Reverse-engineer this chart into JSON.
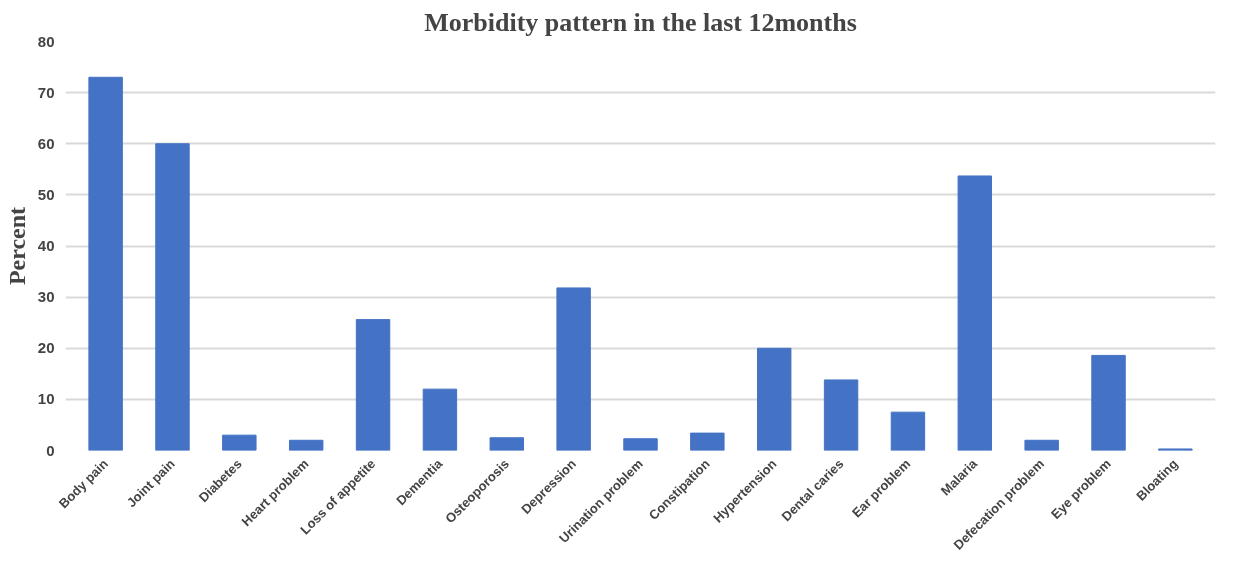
{
  "chart_data": {
    "type": "bar",
    "title": "Morbidity pattern in the last 12months",
    "ylabel": "Percent",
    "categories": [
      "Body pain",
      "Joint pain",
      "Diabetes",
      "Heart problem",
      "Loss of appetite",
      "Dementia",
      "Osteoporosis",
      "Depression",
      "Urination problem",
      "Constipation",
      "Hypertension",
      "Dental caries",
      "Ear problem",
      "Malaria",
      "Defecation problem",
      "Eye problem",
      "Bloating"
    ],
    "values": [
      73,
      60,
      3,
      2,
      25.6,
      12,
      2.5,
      31.8,
      2.3,
      3.4,
      20,
      13.8,
      7.5,
      53.7,
      2,
      18.6,
      0.3
    ],
    "color": "#4472c4",
    "ylim": [
      0,
      80
    ],
    "yticks": [
      0,
      10,
      20,
      30,
      40,
      50,
      60,
      70,
      80
    ],
    "grid": "y"
  }
}
